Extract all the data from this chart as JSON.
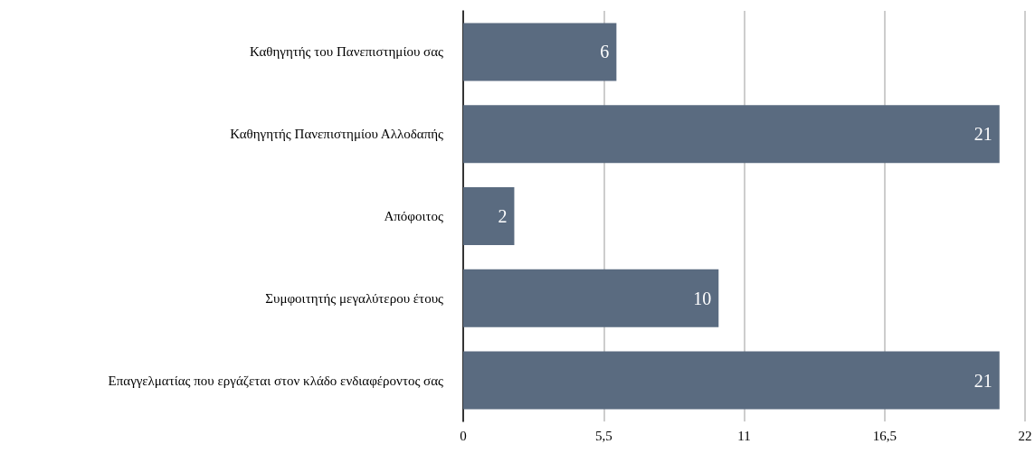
{
  "chart_data": {
    "type": "bar",
    "orientation": "horizontal",
    "categories": [
      "Καθηγητής του Πανεπιστημίου σας",
      "Καθηγητής Πανεπιστημίου Αλλοδαπής",
      "Απόφοιτος",
      "Συμφοιτητής μεγαλύτερου έτους",
      "Επαγγελματίας που εργάζεται στον κλάδο ενδιαφέροντος σας"
    ],
    "values": [
      6,
      21,
      2,
      10,
      21
    ],
    "color": "#5a6b80",
    "xlim": [
      0,
      22
    ],
    "xticks": [
      0,
      {
        "value": 5.5,
        "label": "5,5"
      },
      11,
      {
        "value": 16.5,
        "label": "16,5"
      },
      22
    ],
    "grid": "x",
    "data_labels": true
  }
}
